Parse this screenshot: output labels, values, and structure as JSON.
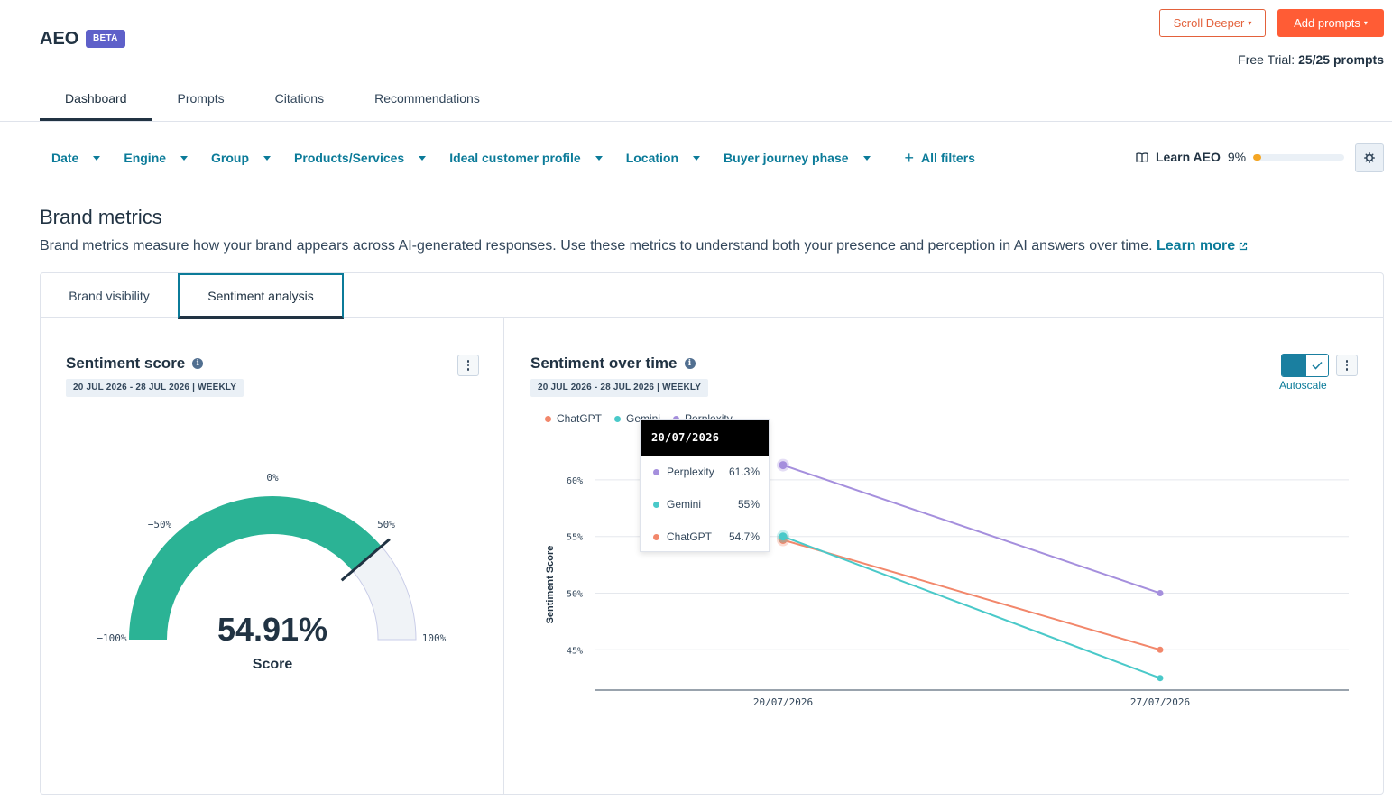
{
  "app": {
    "title": "AEO",
    "badge": "BETA"
  },
  "header": {
    "scroll_button": "Scroll Deeper",
    "add_button": "Add prompts",
    "trial_label": "Free Trial:",
    "trial_value": "25/25 prompts"
  },
  "tabs": [
    {
      "label": "Dashboard",
      "active": true
    },
    {
      "label": "Prompts"
    },
    {
      "label": "Citations"
    },
    {
      "label": "Recommendations"
    }
  ],
  "filters": [
    {
      "label": "Date"
    },
    {
      "label": "Engine"
    },
    {
      "label": "Group"
    },
    {
      "label": "Products/Services"
    },
    {
      "label": "Ideal customer profile"
    },
    {
      "label": "Location"
    },
    {
      "label": "Buyer journey phase"
    }
  ],
  "all_filters_label": "All filters",
  "learn_aeo": {
    "label": "Learn AEO",
    "percent_text": "9%",
    "progress": 0.09
  },
  "brand_metrics": {
    "title": "Brand metrics",
    "description": "Brand metrics measure how your brand appears across AI-generated responses. Use these metrics to understand both your presence and perception in AI answers over time.",
    "learn_more": "Learn more"
  },
  "card_tabs": [
    {
      "label": "Brand visibility"
    },
    {
      "label": "Sentiment analysis",
      "active": true
    }
  ],
  "sentiment_score": {
    "title": "Sentiment score",
    "date_chip": "20 JUL 2026 - 28 JUL 2026 | WEEKLY",
    "value_text": "54.91%",
    "value": 54.91,
    "score_label": "Score",
    "gauge_labels": {
      "min": "−100%",
      "neg50": "−50%",
      "zero": "0%",
      "pos50": "50%",
      "max": "100%"
    },
    "gauge_color": "#2bb395"
  },
  "sentiment_over_time": {
    "title": "Sentiment over time",
    "date_chip": "20 JUL 2026 - 28 JUL 2026 | WEEKLY",
    "autoscale_label": "Autoscale",
    "y_axis_title": "Sentiment Score",
    "legend": [
      {
        "name": "ChatGPT",
        "color": "#f2876b"
      },
      {
        "name": "Gemini",
        "color": "#4ac9c9"
      },
      {
        "name": "Perplexity",
        "color": "#a58fdd"
      }
    ],
    "tooltip": {
      "date": "20/07/2026",
      "rows": [
        {
          "name": "Perplexity",
          "value": "61.3%",
          "color": "#a58fdd"
        },
        {
          "name": "Gemini",
          "value": "55%",
          "color": "#4ac9c9"
        },
        {
          "name": "ChatGPT",
          "value": "54.7%",
          "color": "#f2876b"
        }
      ]
    }
  },
  "chart_data": {
    "type": "line",
    "x": [
      "20/07/2026",
      "27/07/2026"
    ],
    "series": [
      {
        "name": "ChatGPT",
        "values": [
          54.7,
          45
        ],
        "color": "#f2876b"
      },
      {
        "name": "Gemini",
        "values": [
          55,
          42.5
        ],
        "color": "#4ac9c9"
      },
      {
        "name": "Perplexity",
        "values": [
          61.3,
          50
        ],
        "color": "#a58fdd"
      }
    ],
    "ylabel": "Sentiment Score",
    "yticks": [
      "45%",
      "50%",
      "55%",
      "60%"
    ],
    "ytick_values": [
      45,
      50,
      55,
      60
    ],
    "ylim": [
      41.6,
      63.1
    ],
    "grid": true,
    "legend_position": "top-left"
  }
}
